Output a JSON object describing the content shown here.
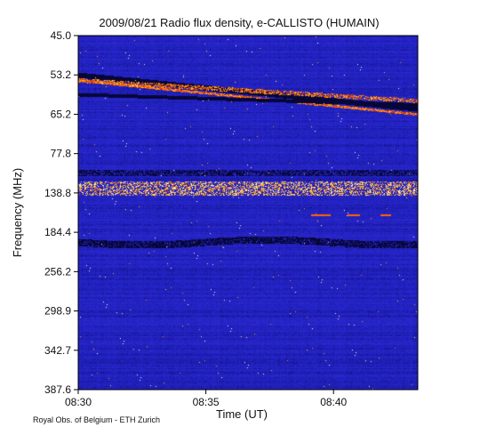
{
  "chart_data": {
    "type": "heatmap",
    "title": "2009/08/21  Radio flux density, e-CALLISTO (HUMAIN)",
    "xlabel": "Time (UT)",
    "ylabel": "Frequency (MHz)",
    "x_ticks": [
      "08:30",
      "08:35",
      "08:40"
    ],
    "x_tick_minutes": [
      0,
      5,
      10
    ],
    "x_range_minutes": [
      0,
      13.3
    ],
    "y_ticks": [
      "45.0",
      "53.2",
      "65.2",
      "77.8",
      "138.8",
      "184.4",
      "256.2",
      "298.9",
      "342.7",
      "387.6"
    ],
    "y_reversed": true,
    "colormap": [
      "#05051e",
      "#0a0a64",
      "#1e1eb4",
      "#2828d2",
      "#6428a0",
      "#c83214",
      "#ff6400",
      "#ffc832",
      "#ffffff"
    ],
    "background_color": "#1e1eb4",
    "features": [
      {
        "label": "drifting bright bands near 53 MHz",
        "y_tick": "53.2"
      },
      {
        "label": "interference cluster near 139 MHz",
        "y_tick": "138.8"
      },
      {
        "label": "dark dip band near 190 MHz",
        "y_tick": "184.4"
      }
    ],
    "grid": false
  },
  "credit": "Royal Obs. of Belgium - ETH Zurich"
}
